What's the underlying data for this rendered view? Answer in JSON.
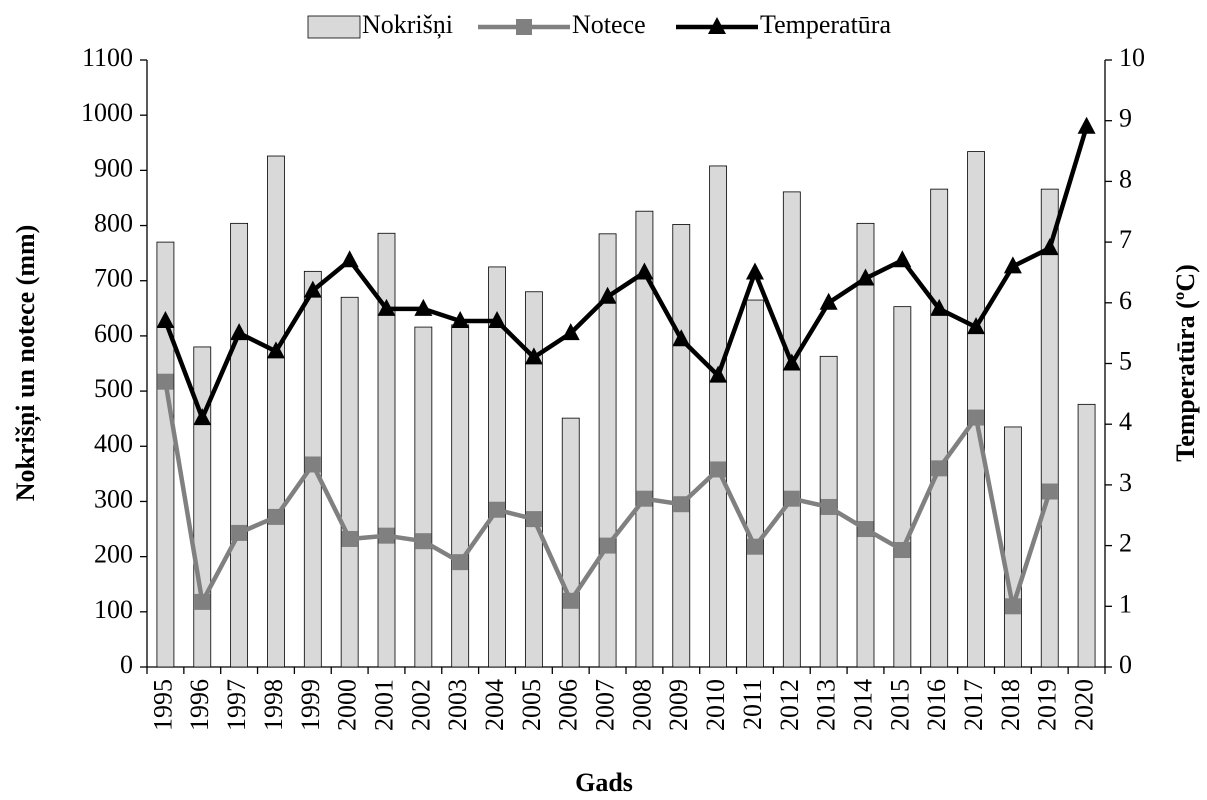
{
  "chart_data": {
    "type": "bar",
    "x_label": "Gads",
    "y_label": "Nokrišņi un notece  (mm)",
    "y2_label": "Temperatūra (ºC)",
    "categories": [
      "1995",
      "1996",
      "1997",
      "1998",
      "1999",
      "2000",
      "2001",
      "2002",
      "2003",
      "2004",
      "2005",
      "2006",
      "2007",
      "2008",
      "2009",
      "2010",
      "2011",
      "2012",
      "2013",
      "2014",
      "2015",
      "2016",
      "2017",
      "2018",
      "2019",
      "2020"
    ],
    "series": [
      {
        "name": "Nokrišņi",
        "type": "bar",
        "color": "#d9d9d9",
        "values": [
          770,
          580,
          804,
          926,
          717,
          670,
          786,
          616,
          620,
          725,
          680,
          451,
          785,
          826,
          802,
          908,
          665,
          861,
          563,
          804,
          653,
          866,
          934,
          435,
          866,
          476
        ]
      },
      {
        "name": "Notece",
        "type": "line",
        "marker": "square",
        "color": "#808080",
        "values": [
          517,
          118,
          243,
          272,
          367,
          232,
          238,
          228,
          190,
          285,
          268,
          120,
          220,
          305,
          295,
          358,
          218,
          305,
          290,
          250,
          212,
          360,
          452,
          110,
          318,
          null
        ]
      },
      {
        "name": "Temperatūra",
        "type": "line",
        "marker": "triangle",
        "color": "#000000",
        "axis": "y2",
        "values": [
          5.7,
          4.1,
          5.5,
          5.2,
          6.2,
          6.7,
          5.9,
          5.9,
          5.7,
          5.7,
          5.1,
          5.5,
          6.1,
          6.5,
          5.4,
          4.8,
          6.5,
          5.0,
          6.0,
          6.4,
          6.7,
          5.9,
          5.6,
          6.6,
          6.9,
          8.9
        ]
      }
    ],
    "ylim": [
      0,
      1100
    ],
    "yticks": [
      0,
      100,
      200,
      300,
      400,
      500,
      600,
      700,
      800,
      900,
      1000,
      1100
    ],
    "y2lim": [
      0,
      10
    ],
    "y2ticks": [
      0,
      1,
      2,
      3,
      4,
      5,
      6,
      7,
      8,
      9,
      10
    ],
    "grid": false,
    "legend": "top"
  }
}
